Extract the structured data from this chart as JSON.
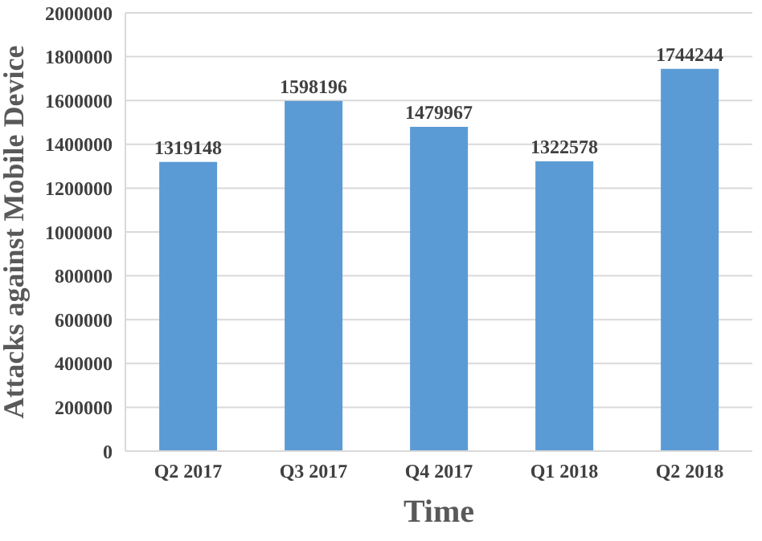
{
  "chart_data": {
    "type": "bar",
    "xlabel": "Time",
    "ylabel": "Attacks against Mobile Device",
    "categories": [
      "Q2 2017",
      "Q3 2017",
      "Q4 2017",
      "Q1 2018",
      "Q2 2018"
    ],
    "values": [
      1319148,
      1598196,
      1479967,
      1322578,
      1744244
    ],
    "color": "#5b9bd5",
    "ylim": [
      0,
      2000000
    ],
    "yticks": [
      0,
      200000,
      400000,
      600000,
      800000,
      1000000,
      1200000,
      1400000,
      1600000,
      1800000,
      2000000
    ],
    "grid": "y",
    "data_labels": true
  }
}
